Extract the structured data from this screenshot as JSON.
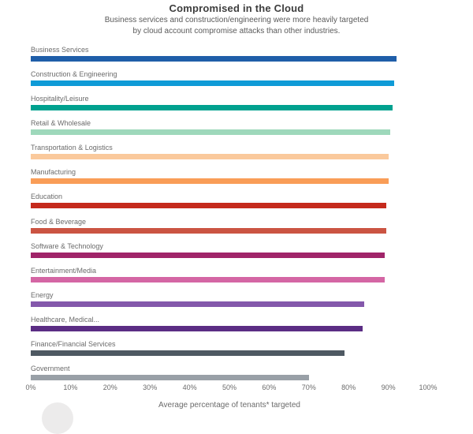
{
  "header": {
    "title": "Compromised in the Cloud",
    "subtitle_line1": "Business services and construction/engineering were more heavily targeted",
    "subtitle_line2": "by cloud account compromise attacks than other industries."
  },
  "chart_data": {
    "type": "bar",
    "orientation": "horizontal",
    "title": "Compromised in the Cloud",
    "subtitle": "Business services and construction/engineering were more heavily targeted by cloud account compromise attacks than other industries.",
    "categories": [
      "Business Services",
      "Construction & Engineering",
      "Hospitality/Leisure",
      "Retail & Wholesale",
      "Transportation & Logistics",
      "Manufacturing",
      "Education",
      "Food & Beverage",
      "Software & Technology",
      "Entertainment/Media",
      "Energy",
      "Healthcare, Medical...",
      "Finance/Financial Services",
      "Government"
    ],
    "values": [
      92,
      91.5,
      91,
      90.5,
      90,
      90,
      89.5,
      89.5,
      89,
      89,
      84,
      83.5,
      79,
      70
    ],
    "unit": "%",
    "bar_colors": [
      "#1f5ea9",
      "#0f9bd7",
      "#00a18f",
      "#9ed8bb",
      "#fac99c",
      "#f99d57",
      "#c52a1c",
      "#cb5442",
      "#a02469",
      "#d466a4",
      "#8458ab",
      "#5b2d84",
      "#4e5962",
      "#99a0a7"
    ],
    "xlabel": "Average percentage of tenants* targeted",
    "ylabel": "",
    "xlim": [
      0,
      100
    ],
    "x_ticks": [
      "0%",
      "10%",
      "20%",
      "30%",
      "40%",
      "50%",
      "60%",
      "70%",
      "80%",
      "90%",
      "100%"
    ],
    "grid": false,
    "legend": "none"
  }
}
